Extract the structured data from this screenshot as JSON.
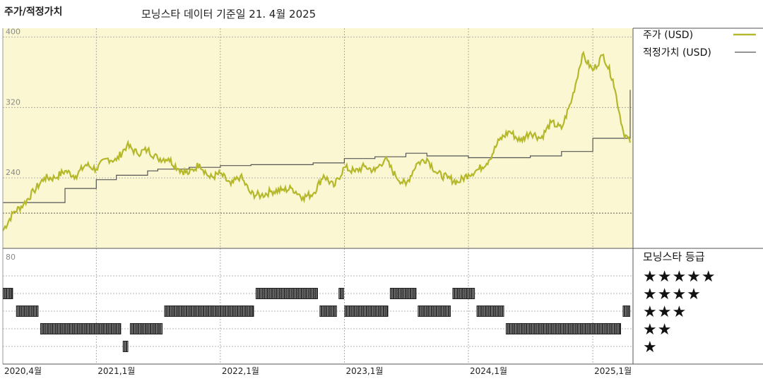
{
  "header": {
    "title": "주가/적정가치",
    "subtitle": "모닝스타 데이터 기준일 21. 4월 2025"
  },
  "colors": {
    "price": "#b5b82a",
    "fair_value": "#555555",
    "plot_bg": "#faf7d2",
    "rating_bar": "#222222"
  },
  "chart_data": [
    {
      "type": "line",
      "title": "주가/적정가치",
      "x_range": [
        "2020-04-01",
        "2025-04-21"
      ],
      "ylim": [
        160,
        410
      ],
      "y_ticks": [
        240,
        320,
        400
      ],
      "grid": true,
      "legend_position": "right",
      "x_tick_labels": [
        {
          "date": "2020-04-01",
          "label": "2020,4월"
        },
        {
          "date": "2021-01-01",
          "label": "2021,1월"
        },
        {
          "date": "2022-01-01",
          "label": "2022,1월"
        },
        {
          "date": "2023-01-01",
          "label": "2023,1월"
        },
        {
          "date": "2024-01-01",
          "label": "2024,1월"
        },
        {
          "date": "2025-01-01",
          "label": "2025,1월"
        }
      ],
      "series": [
        {
          "name": "주가 (USD)",
          "points": [
            [
              "2020-04-01",
              180
            ],
            [
              "2020-05-01",
              200
            ],
            [
              "2020-06-01",
              210
            ],
            [
              "2020-07-01",
              225
            ],
            [
              "2020-08-01",
              240
            ],
            [
              "2020-09-01",
              240
            ],
            [
              "2020-10-01",
              248
            ],
            [
              "2020-11-01",
              242
            ],
            [
              "2020-12-01",
              255
            ],
            [
              "2021-01-01",
              250
            ],
            [
              "2021-02-01",
              262
            ],
            [
              "2021-03-01",
              260
            ],
            [
              "2021-04-01",
              277
            ],
            [
              "2021-05-01",
              268
            ],
            [
              "2021-06-01",
              272
            ],
            [
              "2021-07-01",
              262
            ],
            [
              "2021-08-01",
              262
            ],
            [
              "2021-09-01",
              250
            ],
            [
              "2021-10-01",
              245
            ],
            [
              "2021-11-01",
              256
            ],
            [
              "2021-12-01",
              240
            ],
            [
              "2022-01-01",
              245
            ],
            [
              "2022-02-01",
              232
            ],
            [
              "2022-03-01",
              242
            ],
            [
              "2022-04-01",
              222
            ],
            [
              "2022-05-01",
              220
            ],
            [
              "2022-06-01",
              225
            ],
            [
              "2022-07-01",
              226
            ],
            [
              "2022-08-01",
              228
            ],
            [
              "2022-09-01",
              218
            ],
            [
              "2022-10-01",
              222
            ],
            [
              "2022-11-01",
              243
            ],
            [
              "2022-12-01",
              230
            ],
            [
              "2023-01-01",
              252
            ],
            [
              "2023-02-01",
              247
            ],
            [
              "2023-03-01",
              253
            ],
            [
              "2023-04-01",
              248
            ],
            [
              "2023-05-01",
              262
            ],
            [
              "2023-06-01",
              242
            ],
            [
              "2023-07-01",
              232
            ],
            [
              "2023-08-01",
              256
            ],
            [
              "2023-09-01",
              262
            ],
            [
              "2023-10-01",
              245
            ],
            [
              "2023-11-01",
              240
            ],
            [
              "2023-12-01",
              235
            ],
            [
              "2024-01-01",
              244
            ],
            [
              "2024-02-01",
              250
            ],
            [
              "2024-03-01",
              260
            ],
            [
              "2024-04-01",
              283
            ],
            [
              "2024-05-01",
              293
            ],
            [
              "2024-06-01",
              282
            ],
            [
              "2024-07-01",
              292
            ],
            [
              "2024-08-01",
              285
            ],
            [
              "2024-09-01",
              303
            ],
            [
              "2024-10-01",
              296
            ],
            [
              "2024-11-01",
              330
            ],
            [
              "2024-12-01",
              380
            ],
            [
              "2025-01-01",
              362
            ],
            [
              "2025-02-01",
              380
            ],
            [
              "2025-03-01",
              352
            ],
            [
              "2025-04-01",
              292
            ],
            [
              "2025-04-21",
              280
            ]
          ]
        },
        {
          "name": "적정가치 (USD)",
          "points": [
            [
              "2020-04-01",
              212
            ],
            [
              "2020-07-01",
              212
            ],
            [
              "2020-10-01",
              228
            ],
            [
              "2021-01-01",
              238
            ],
            [
              "2021-03-01",
              243
            ],
            [
              "2021-06-01",
              248
            ],
            [
              "2021-07-01",
              250
            ],
            [
              "2021-10-01",
              252
            ],
            [
              "2022-01-01",
              254
            ],
            [
              "2022-04-01",
              255
            ],
            [
              "2022-07-01",
              255
            ],
            [
              "2022-10-01",
              257
            ],
            [
              "2023-01-01",
              262
            ],
            [
              "2023-04-01",
              264
            ],
            [
              "2023-07-01",
              268
            ],
            [
              "2023-09-01",
              265
            ],
            [
              "2023-12-01",
              265
            ],
            [
              "2024-01-01",
              263
            ],
            [
              "2024-04-01",
              263
            ],
            [
              "2024-07-01",
              265
            ],
            [
              "2024-10-01",
              270
            ],
            [
              "2025-01-01",
              285
            ],
            [
              "2025-04-01",
              285
            ],
            [
              "2025-04-15",
              285
            ],
            [
              "2025-04-21",
              340
            ]
          ]
        }
      ]
    },
    {
      "type": "table",
      "title": "모닝스타 등급",
      "y_tick": "80",
      "rating_labels": [
        "★★★★★",
        "★★★★",
        "★★★",
        "★★",
        "★"
      ],
      "rating_periods": [
        {
          "stars": 4,
          "start": "2020-04-01",
          "end": "2020-05-01"
        },
        {
          "stars": 3,
          "start": "2020-05-10",
          "end": "2020-07-15"
        },
        {
          "stars": 2,
          "start": "2020-07-20",
          "end": "2021-03-15"
        },
        {
          "stars": 1,
          "start": "2021-03-20",
          "end": "2021-04-05"
        },
        {
          "stars": 2,
          "start": "2021-04-10",
          "end": "2021-07-15"
        },
        {
          "stars": 3,
          "start": "2021-07-20",
          "end": "2022-04-10"
        },
        {
          "stars": 4,
          "start": "2022-04-15",
          "end": "2022-10-15"
        },
        {
          "stars": 3,
          "start": "2022-10-20",
          "end": "2022-12-10"
        },
        {
          "stars": 4,
          "start": "2022-12-15",
          "end": "2022-12-31"
        },
        {
          "stars": 3,
          "start": "2023-01-01",
          "end": "2023-05-10"
        },
        {
          "stars": 4,
          "start": "2023-05-15",
          "end": "2023-08-01"
        },
        {
          "stars": 3,
          "start": "2023-08-05",
          "end": "2023-11-10"
        },
        {
          "stars": 4,
          "start": "2023-11-15",
          "end": "2024-01-20"
        },
        {
          "stars": 3,
          "start": "2024-01-25",
          "end": "2024-04-15"
        },
        {
          "stars": 2,
          "start": "2024-04-20",
          "end": "2025-03-25"
        },
        {
          "stars": 3,
          "start": "2025-03-30",
          "end": "2025-04-21"
        }
      ]
    }
  ]
}
